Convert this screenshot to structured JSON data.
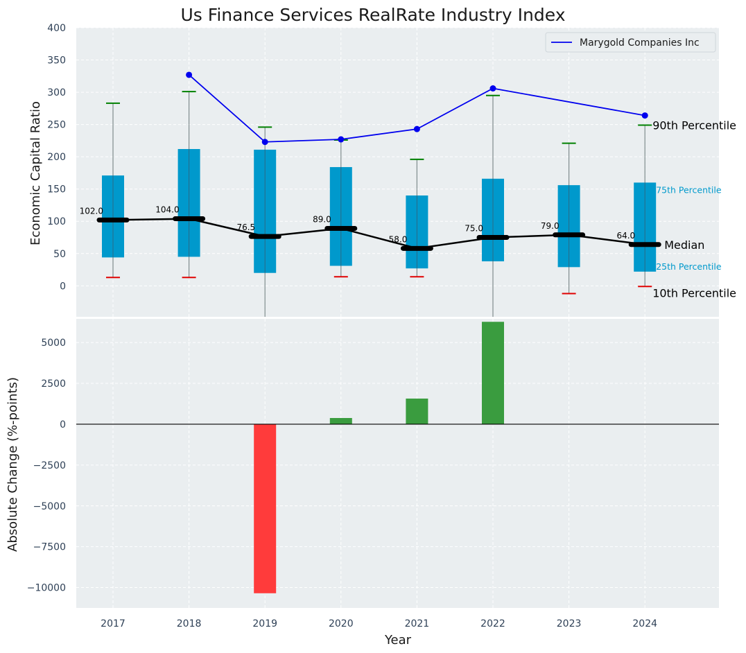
{
  "chart_data": [
    {
      "type": "box",
      "title": "Us Finance Services RealRate Industry Index",
      "ylabel": "Economic Capital Ratio",
      "ylim": [
        -48,
        400
      ],
      "yticks": [
        0,
        50,
        100,
        150,
        200,
        250,
        300,
        350,
        400
      ],
      "categories": [
        "2017",
        "2018",
        "2019",
        "2020",
        "2021",
        "2022",
        "2023",
        "2024"
      ],
      "grid": true,
      "boxes": [
        {
          "year": "2017",
          "p10": 13,
          "p25": 44,
          "median": 102.0,
          "p75": 171,
          "p90": 283,
          "whisker_low": 13,
          "whisker_high": 283
        },
        {
          "year": "2018",
          "p10": 13,
          "p25": 45,
          "median": 104.0,
          "p75": 212,
          "p90": 301,
          "whisker_low": 13,
          "whisker_high": 301
        },
        {
          "year": "2019",
          "p10": -48,
          "p25": 20,
          "median": 76.5,
          "p75": 211,
          "p90": 246,
          "whisker_low": -48,
          "whisker_high": 246
        },
        {
          "year": "2020",
          "p10": 14,
          "p25": 31,
          "median": 89.0,
          "p75": 184,
          "p90": 226,
          "whisker_low": 14,
          "whisker_high": 226
        },
        {
          "year": "2021",
          "p10": 14,
          "p25": 27,
          "median": 58.0,
          "p75": 140,
          "p90": 196,
          "whisker_low": 14,
          "whisker_high": 196
        },
        {
          "year": "2022",
          "p10": -48,
          "p25": 38,
          "median": 75.0,
          "p75": 166,
          "p90": 295,
          "whisker_low": -48,
          "whisker_high": 295
        },
        {
          "year": "2023",
          "p10": -12,
          "p25": 29,
          "median": 79.0,
          "p75": 156,
          "p90": 221,
          "whisker_low": -12,
          "whisker_high": 221
        },
        {
          "year": "2024",
          "p10": -1,
          "p25": 22,
          "median": 64.0,
          "p75": 160,
          "p90": 249,
          "whisker_low": -1,
          "whisker_high": 249
        }
      ],
      "median_labels": [
        "102.0",
        "104.0",
        "76.5",
        "89.0",
        "58.0",
        "75.0",
        "79.0",
        "64.0"
      ],
      "series": [
        {
          "name": "Marygold Companies Inc",
          "color": "#0000ee",
          "x": [
            "2018",
            "2019",
            "2020",
            "2021",
            "2022",
            "2024"
          ],
          "values": [
            327,
            223,
            227,
            243,
            306,
            264
          ]
        }
      ],
      "legend": {
        "placement": "top-right",
        "entries": [
          "Marygold Companies Inc"
        ]
      },
      "annotations": {
        "p90": "90th Percentile",
        "p75": "75th Percentile",
        "median": "Median",
        "p25": "25th Percentile",
        "p10": "10th Percentile"
      },
      "colors": {
        "box": "#0099cc",
        "median": "#000000",
        "whisker_top": "#008000",
        "whisker_bottom": "#e00000",
        "background": "#eaeef0"
      }
    },
    {
      "type": "bar",
      "ylabel": "Absolute Change (%-points)",
      "xlabel": "Year",
      "categories": [
        "2017",
        "2018",
        "2019",
        "2020",
        "2021",
        "2022",
        "2023",
        "2024"
      ],
      "values": [
        null,
        null,
        -10350,
        380,
        1570,
        6270,
        null,
        null
      ],
      "ylim": [
        -11250,
        6450
      ],
      "yticks": [
        -10000,
        -7500,
        -5000,
        -2500,
        0,
        2500,
        5000
      ],
      "ytick_labels": [
        "−10000",
        "−7500",
        "−5000",
        "−2500",
        "0",
        "2500",
        "5000"
      ],
      "grid": true,
      "colors": {
        "positive": "#3a9c3f",
        "negative": "#ff3b3b",
        "zero_line": "#000000"
      }
    }
  ]
}
